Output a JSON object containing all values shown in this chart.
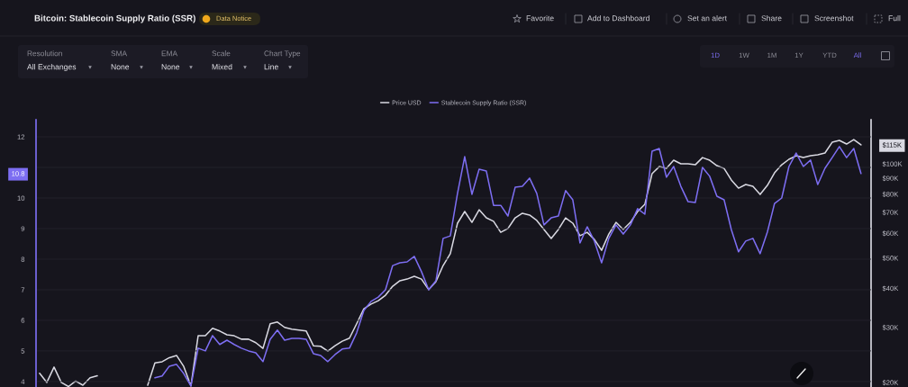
{
  "chart_data": {
    "type": "line",
    "title": "Bitcoin: Stablecoin Supply Ratio (SSR)",
    "annotations": [
      "Data Notice",
      "Favorite",
      "Add to Dashboard",
      "Set an alert",
      "Share",
      "Screenshot",
      "Full",
      "Resolution",
      "All Exchanges",
      "SMA",
      "None",
      "EMA",
      "None",
      "Scale",
      "Mixed",
      "Chart Type",
      "Line",
      "1D",
      "1W",
      "1M",
      "1Y",
      "YTD",
      "All"
    ],
    "categories": [
      null,
      null,
      null,
      null,
      null,
      null,
      null,
      null,
      null,
      null,
      null,
      null,
      null,
      null,
      null,
      null,
      null,
      null,
      null,
      null,
      null,
      null,
      null,
      null,
      null,
      null,
      null,
      null,
      null,
      null,
      null,
      null,
      null,
      null,
      null,
      null,
      null,
      null,
      null,
      null,
      null,
      null,
      null,
      null,
      null,
      null,
      null,
      null,
      null,
      null,
      null,
      null,
      null,
      null,
      null,
      null,
      null,
      null,
      null,
      null,
      null,
      null,
      null,
      null,
      null,
      null,
      null,
      null,
      null,
      null,
      null,
      null,
      null,
      null,
      null,
      null,
      null,
      null,
      null,
      null,
      null,
      null,
      null,
      null,
      null,
      null,
      null,
      null,
      null,
      null,
      null,
      null,
      null,
      null,
      null,
      null,
      null,
      null,
      null,
      null,
      null,
      null,
      null,
      null,
      null,
      null,
      null,
      null,
      null,
      null,
      null,
      null,
      null,
      null,
      null
    ],
    "series": [
      {
        "name": "Price USD",
        "color": "#d9d9e2",
        "axis": "y2",
        "values": [
          null,
          null,
          null,
          null,
          null,
          null,
          null,
          null,
          null,
          null,
          null,
          null,
          null,
          null,
          null,
          19600,
          23100,
          23300,
          24000,
          24400,
          22500,
          19500,
          28200,
          28200,
          29800,
          29200,
          28400,
          28200,
          27500,
          27500,
          26800,
          25700,
          30800,
          31200,
          30000,
          29600,
          29400,
          29200,
          26200,
          26100,
          25200,
          26200,
          27100,
          27700,
          30800,
          34400,
          35600,
          36500,
          38000,
          40600,
          42300,
          42800,
          43700,
          42800,
          39600,
          42000,
          47300,
          51600,
          64600,
          70400,
          65000,
          71300,
          67200,
          65500,
          60400,
          62100,
          67200,
          69500,
          68600,
          65900,
          61700,
          57700,
          61700,
          67200,
          64600,
          58900,
          60400,
          57300,
          52900,
          59600,
          65000,
          61700,
          65000,
          70400,
          74200,
          93000,
          98000,
          96700,
          102700,
          100000,
          100000,
          99300,
          104700,
          102700,
          98700,
          96700,
          88800,
          83600,
          85900,
          84700,
          79800,
          85300,
          93600,
          99300,
          103400,
          106100,
          104700,
          106100,
          106900,
          108300,
          117200,
          118800,
          115700,
          119600,
          115000
        ]
      },
      {
        "name": "Stablecoin Supply Ratio (SSR)",
        "color": "#7d6ef2",
        "values": [
          null,
          null,
          null,
          null,
          null,
          null,
          null,
          null,
          null,
          null,
          null,
          null,
          null,
          null,
          null,
          null,
          4.12,
          4.18,
          4.5,
          4.56,
          4.26,
          3.85,
          5.09,
          5,
          5.5,
          5.21,
          5.35,
          5.21,
          5.09,
          5,
          4.94,
          4.65,
          5.38,
          5.68,
          5.35,
          5.41,
          5.41,
          5.38,
          4.91,
          4.85,
          4.65,
          4.88,
          5.06,
          5.09,
          5.59,
          6.32,
          6.62,
          6.76,
          7,
          7.79,
          7.88,
          7.91,
          8.09,
          7.59,
          7,
          7.29,
          8.68,
          8.76,
          10.15,
          11.35,
          10.12,
          10.94,
          10.88,
          9.76,
          9.76,
          9.41,
          10.35,
          10.38,
          10.65,
          10.15,
          9.12,
          9.35,
          9.41,
          10.24,
          9.94,
          8.53,
          9.06,
          8.59,
          7.88,
          8.68,
          9.12,
          8.82,
          9.12,
          9.65,
          9.47,
          11.53,
          11.62,
          10.68,
          11.03,
          10.38,
          9.88,
          9.85,
          11,
          10.71,
          10.06,
          9.94,
          8.97,
          8.24,
          8.59,
          8.68,
          8.18,
          8.88,
          9.82,
          10,
          11.03,
          11.47,
          11.03,
          11.24,
          10.44,
          10.97,
          11.32,
          11.68,
          11.32,
          11.62,
          10.8
        ]
      },
      {
        "color": "#d9d9e2",
        "axis": "y2",
        "values": [
          21400,
          20000,
          22400,
          20000,
          19400,
          20200,
          19600,
          20700,
          21000,
          null,
          null,
          null,
          null,
          null,
          null,
          null,
          null,
          null,
          null,
          null,
          null,
          null,
          null,
          null,
          null,
          null,
          null,
          null,
          null,
          null,
          null,
          null,
          null,
          null,
          null,
          null,
          null,
          null,
          null,
          null,
          null,
          null,
          null,
          null,
          null,
          null,
          null,
          null,
          null,
          null,
          null,
          null,
          null,
          null,
          null,
          null,
          null,
          null,
          null,
          null,
          null,
          null,
          null,
          null,
          null,
          null,
          null,
          null,
          null,
          null,
          null,
          null,
          null,
          null,
          null,
          null,
          null,
          null,
          null,
          null,
          null,
          null,
          null,
          null,
          null,
          null,
          null,
          null,
          null,
          null,
          null,
          null,
          null,
          null,
          null,
          null,
          null,
          null,
          null,
          null,
          null,
          null,
          null,
          null,
          null,
          null,
          null,
          null,
          null,
          null,
          null,
          null,
          null,
          null,
          null
        ]
      }
    ],
    "ylim": [
      3.82,
      12.56
    ],
    "yticks": [
      4,
      5,
      6,
      7,
      8,
      9,
      10,
      {
        "value": 10.8,
        "label": "10.8"
      },
      {
        "value": 11,
        "label": null
      },
      12
    ],
    "y2lim": [
      19340,
      138400
    ],
    "y2ticks": [
      {
        "value": 20000,
        "label": "$20K"
      },
      {
        "value": 30000,
        "label": "$30K"
      },
      {
        "value": 40000,
        "label": "$40K"
      },
      {
        "value": 50000,
        "label": "$50K"
      },
      {
        "value": 60000,
        "label": "$60K"
      },
      {
        "value": 70000,
        "label": "$70K"
      },
      {
        "value": 80000,
        "label": "$80K"
      },
      {
        "value": 90000,
        "label": "$90K"
      },
      {
        "value": 100000,
        "label": "$100K"
      },
      {
        "value": 115000,
        "label": "$115K"
      }
    ],
    "log": "y2",
    "grid": "y",
    "legend": "top"
  }
}
